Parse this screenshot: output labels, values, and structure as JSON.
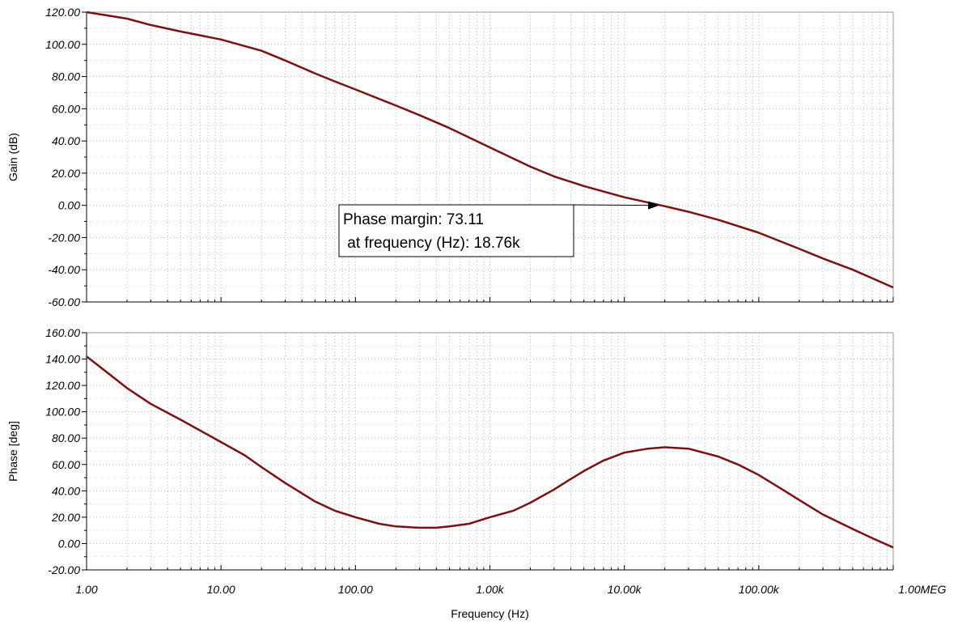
{
  "chart_data": [
    {
      "type": "line",
      "ylabel": "Gain (dB)",
      "ylim": [
        -60,
        120
      ],
      "yticks": [
        "120.00",
        "100.00",
        "80.00",
        "60.00",
        "40.00",
        "20.00",
        "0.00",
        "-20.00",
        "-40.00",
        "-60.00"
      ],
      "x_scale": "log",
      "xlim": [
        1,
        1000000
      ],
      "grid": true,
      "line_color": "#7a1212",
      "series": [
        {
          "x": [
            1,
            2,
            3,
            5,
            10,
            20,
            30,
            50,
            70,
            100,
            200,
            300,
            500,
            1000,
            2000,
            3000,
            5000,
            10000,
            18760,
            30000,
            50000,
            100000,
            200000,
            300000,
            500000,
            1000000
          ],
          "values": [
            120,
            116,
            112,
            108,
            103,
            96,
            90,
            82,
            77,
            72,
            62,
            56,
            48,
            36,
            24,
            18,
            12,
            5,
            0,
            -4,
            -9,
            -17,
            -27,
            -33,
            -40,
            -51
          ]
        }
      ],
      "annotation": {
        "line1": "Phase margin: 73.11",
        "line2": " at frequency (Hz): 18.76k",
        "target_x": 18760,
        "target_y": 0
      }
    },
    {
      "type": "line",
      "ylabel": "Phase [deg]",
      "xlabel": "Frequency (Hz)",
      "ylim": [
        -20,
        160
      ],
      "yticks": [
        "160.00",
        "140.00",
        "120.00",
        "100.00",
        "80.00",
        "60.00",
        "40.00",
        "20.00",
        "0.00",
        "-20.00"
      ],
      "x_scale": "log",
      "xlim": [
        1,
        1000000
      ],
      "xticks": [
        "1.00",
        "10.00",
        "100.00",
        "1.00k",
        "10.00k",
        "100.00k",
        "1.00MEG"
      ],
      "grid": true,
      "line_color": "#7a1212",
      "series": [
        {
          "x": [
            1,
            1.5,
            2,
            3,
            5,
            10,
            15,
            20,
            30,
            50,
            70,
            100,
            150,
            200,
            300,
            400,
            500,
            700,
            1000,
            1500,
            2000,
            3000,
            4000,
            5000,
            7000,
            10000,
            15000,
            20000,
            30000,
            50000,
            70000,
            100000,
            150000,
            200000,
            300000,
            500000,
            700000,
            1000000
          ],
          "values": [
            142,
            128,
            118,
            106,
            94,
            77,
            67,
            58,
            46,
            32,
            25,
            20,
            15,
            13,
            12,
            12,
            13,
            15,
            20,
            25,
            31,
            41,
            49,
            55,
            63,
            69,
            72,
            73.1,
            72,
            66,
            60,
            52,
            41,
            33,
            22,
            11,
            4,
            -3
          ]
        }
      ]
    }
  ]
}
